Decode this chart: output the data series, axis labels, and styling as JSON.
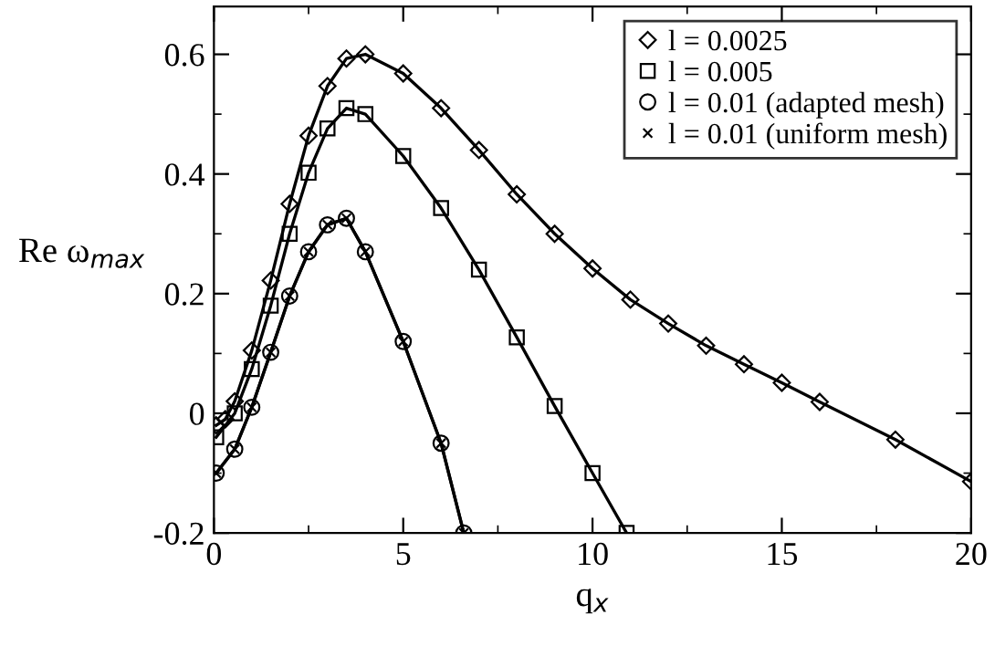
{
  "chart_data": {
    "type": "line",
    "xlabel": "q$_{x}$",
    "ylabel": "Re ω$_{max}$",
    "xlim": [
      0,
      20
    ],
    "ylim": [
      -0.2,
      0.68
    ],
    "xticks": [
      0,
      5,
      10,
      15,
      20
    ],
    "yticks": [
      {
        "value": -0.2,
        "label": "-0.2"
      },
      0,
      0.2,
      0.4,
      0.6
    ],
    "legend": "top right",
    "grid": false,
    "line_style": "solid",
    "series": [
      {
        "name": "l = 0.0025",
        "color": "#000000",
        "marker": "diamond",
        "x": [
          0.06,
          0.3,
          0.55,
          1.0,
          1.5,
          2.0,
          2.5,
          3.0,
          3.5,
          4.0,
          5.0,
          6.0,
          7.0,
          8.0,
          9.0,
          10.0,
          11.0,
          12.0,
          13.0,
          14.0,
          15.0,
          16.0,
          18.0,
          20.0
        ],
        "values": [
          -0.02,
          -0.01,
          0.02,
          0.105,
          0.222,
          0.35,
          0.464,
          0.547,
          0.593,
          0.6,
          0.568,
          0.51,
          0.44,
          0.366,
          0.3,
          0.242,
          0.19,
          0.15,
          0.113,
          0.082,
          0.051,
          0.019,
          -0.044,
          -0.114
        ]
      },
      {
        "name": "l = 0.005",
        "color": "#000000",
        "marker": "square",
        "x": [
          0.06,
          0.55,
          1.0,
          1.5,
          2.0,
          2.5,
          3.0,
          3.5,
          4.0,
          5.0,
          6.0,
          7.0,
          8.0,
          9.0,
          10.0,
          10.9
        ],
        "values": [
          -0.04,
          0.0,
          0.074,
          0.18,
          0.3,
          0.402,
          0.476,
          0.51,
          0.5,
          0.43,
          0.343,
          0.24,
          0.127,
          0.012,
          -0.1,
          -0.2
        ]
      },
      {
        "name": "l = 0.01 (adapted mesh)",
        "color": "#000000",
        "marker": "circle",
        "x": [
          0.06,
          0.55,
          1.0,
          1.5,
          2.0,
          2.5,
          3.0,
          3.5,
          4.0,
          5.0,
          6.0,
          6.6
        ],
        "values": [
          -0.1,
          -0.06,
          0.01,
          0.102,
          0.196,
          0.27,
          0.315,
          0.326,
          0.27,
          0.12,
          -0.05,
          -0.2
        ]
      },
      {
        "name": "l = 0.01 (uniform mesh)",
        "color": "#000000",
        "marker": "cross",
        "x": [
          0.06,
          0.55,
          1.0,
          1.5,
          2.0,
          2.5,
          3.0,
          3.5,
          4.0,
          5.0,
          6.0,
          6.6
        ],
        "values": [
          -0.1,
          -0.06,
          0.01,
          0.102,
          0.196,
          0.27,
          0.315,
          0.326,
          0.27,
          0.12,
          -0.05,
          -0.2
        ]
      }
    ]
  }
}
